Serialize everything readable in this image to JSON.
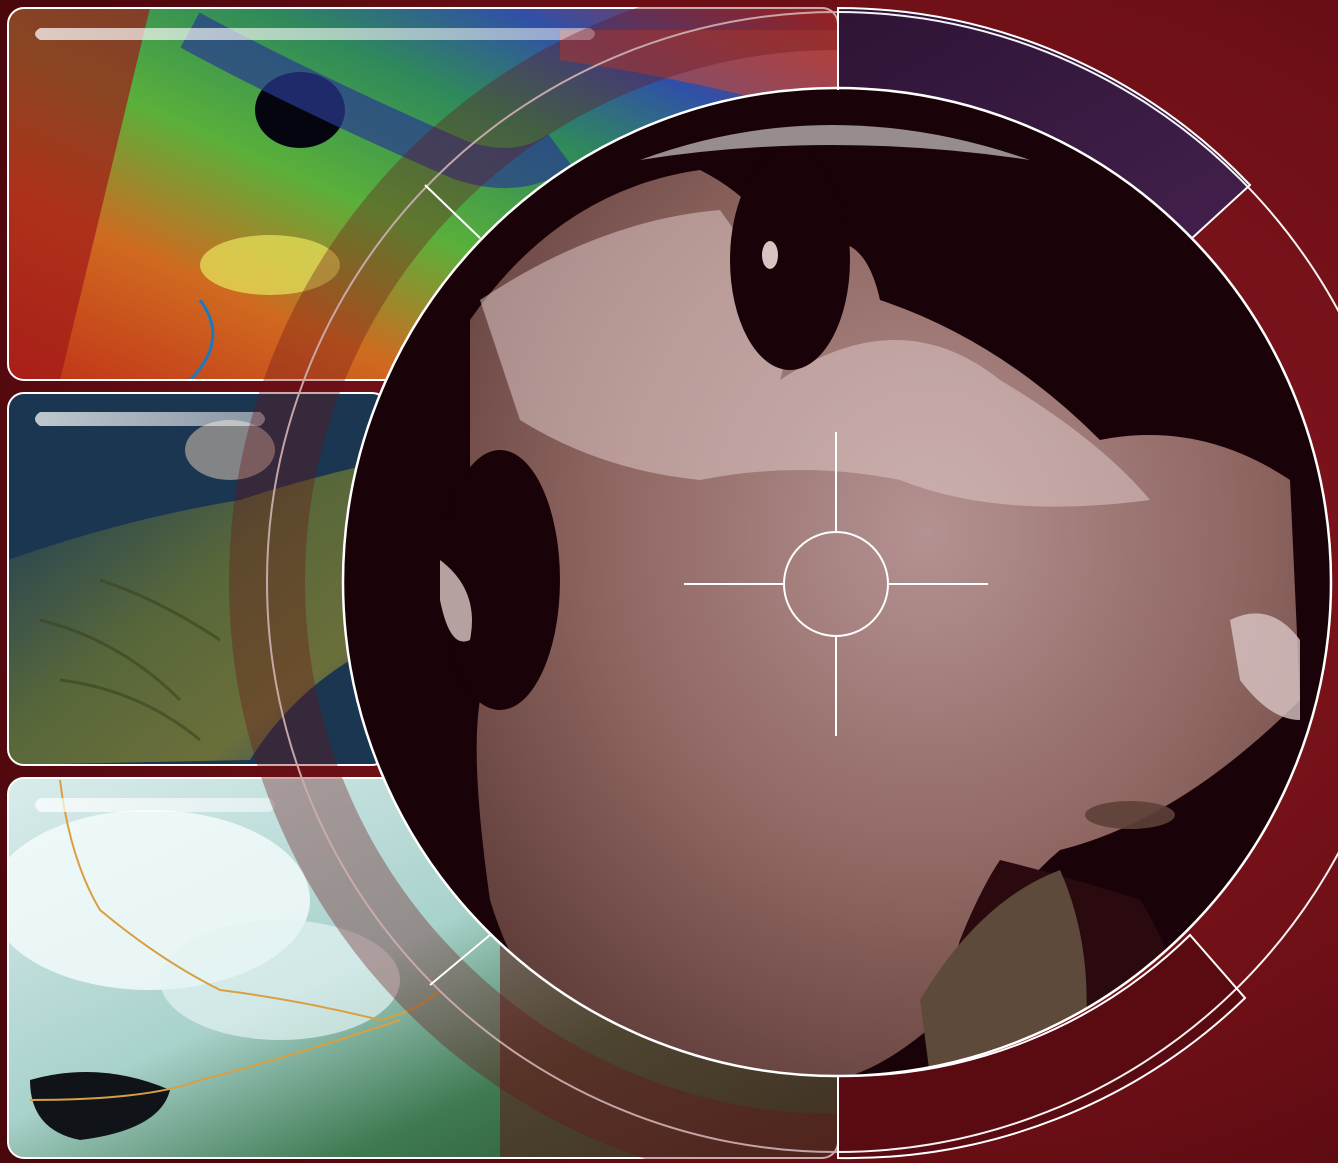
{
  "image": {
    "kind": "composite-satellite-imagery-poster",
    "text": []
  },
  "colors": {
    "background": "#6e0f16",
    "background_dark": "#4a070c",
    "frame_stroke": "#ffffff",
    "purple_panel": "#3b1a44",
    "land_sepia": "#8a5d5a",
    "land_light": "#c9aaa9",
    "water_dark": "#1a0308"
  },
  "panels": [
    {
      "id": "panel-1",
      "subject": "false-color-terrain"
    },
    {
      "id": "panel-2",
      "subject": "shaded-relief-coastline"
    },
    {
      "id": "panel-3",
      "subject": "cloud-cover-satellite"
    }
  ],
  "overlay": {
    "icon": "crosshair-icon"
  }
}
